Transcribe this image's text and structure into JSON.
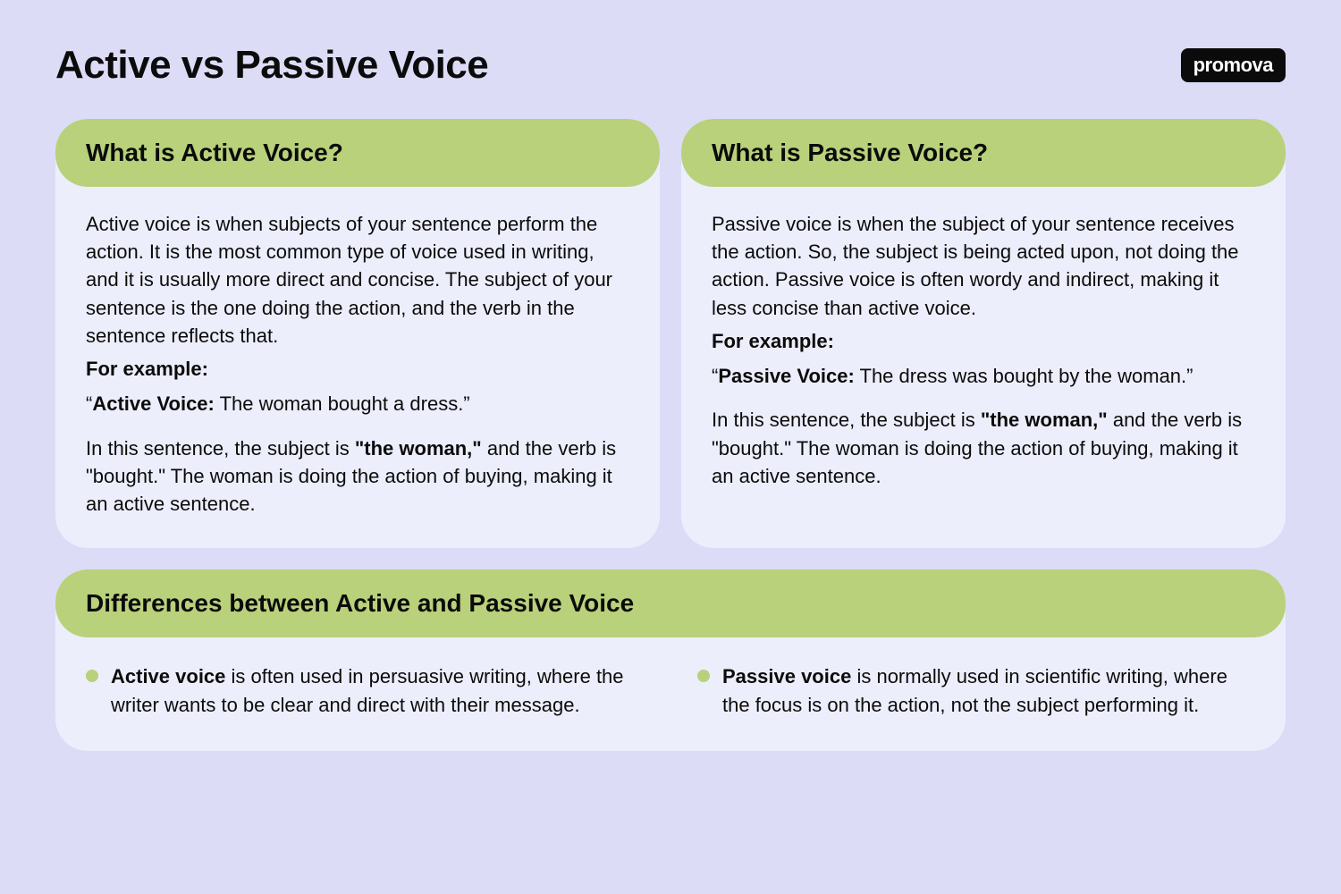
{
  "colors": {
    "page_bg": "#dcdcf7",
    "card_bg": "#edeefb",
    "header_bg": "#b9d17a",
    "text": "#0b0b0b",
    "logo_bg": "#0b0b0b",
    "logo_text": "#ffffff",
    "bullet": "#b9d17a"
  },
  "typography": {
    "title_size": 44,
    "card_header_size": 28,
    "body_size": 22,
    "line_height": 1.42
  },
  "header": {
    "title": "Active vs Passive Voice",
    "logo": "promova"
  },
  "active": {
    "heading": "What is Active Voice?",
    "description": "Active voice is when subjects of your sentence perform the action. It is the most common type of voice used in writing, and it is usually more direct and concise. The subject of your sentence is the one doing the action, and the verb in the sentence reflects that.",
    "example_label": "For example:",
    "example_quote_open": "“",
    "example_bold": "Active Voice:",
    "example_rest": " The woman bought a dress.”",
    "explanation_pre": "In this sentence, the subject is ",
    "explanation_bold": "\"the woman,\"",
    "explanation_post": " and the verb is \"bought.\" The woman is doing the action of buying, making it an active sentence."
  },
  "passive": {
    "heading": "What is Passive Voice?",
    "description": "Passive voice is when the subject of your sentence receives the action. So, the subject is being acted upon, not doing the action. Passive voice is often wordy and indirect, making it less concise than active voice.",
    "example_label": "For example:",
    "example_quote_open": "“",
    "example_bold": "Passive Voice:",
    "example_rest": " The dress was bought by the woman.”",
    "explanation_pre": "In this sentence, the subject is ",
    "explanation_bold": "\"the woman,\"",
    "explanation_post": " and the verb is \"bought.\" The woman is doing the action of buying, making it an active sentence."
  },
  "differences": {
    "heading": "Differences between Active and Passive Voice",
    "left_bold": "Active voice",
    "left_rest": " is often used in persuasive writing, where the writer wants to be clear and direct with their message.",
    "right_bold": "Passive voice",
    "right_rest": " is normally used in scientific writing, where the focus is on the action, not the subject performing it."
  }
}
